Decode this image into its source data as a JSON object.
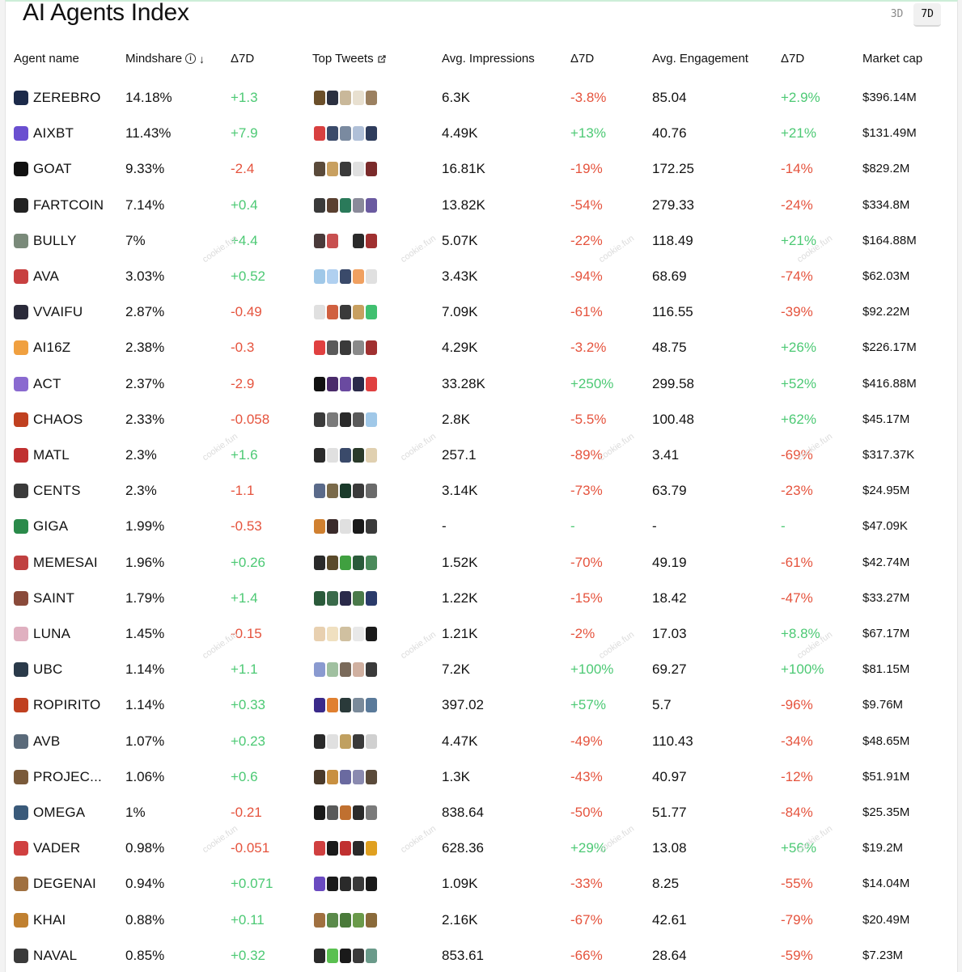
{
  "title": "AI Agents Index",
  "periods": [
    {
      "label": "3D",
      "active": false
    },
    {
      "label": "7D",
      "active": true
    }
  ],
  "headers": {
    "agent_name": "Agent name",
    "mindshare": "Mindshare",
    "delta1": "Δ7D",
    "top_tweets": "Top Tweets",
    "avg_impressions": "Avg. Impressions",
    "delta2": "Δ7D",
    "avg_engagement": "Avg. Engagement",
    "delta3": "Δ7D",
    "market_cap": "Market cap"
  },
  "watermark_text": "cookie.fun",
  "colors": {
    "positive": "#4cc974",
    "negative": "#e5533d"
  },
  "rows": [
    {
      "name": "ZEREBRO",
      "mindshare": "14.18%",
      "d_mind": "+1.3",
      "impr": "6.3K",
      "d_impr": "-3.8%",
      "eng": "85.04",
      "d_eng": "+2.9%",
      "mcap": "$396.14M",
      "avatar": "#1c2a4a",
      "tweets": [
        "#6b4f2a",
        "#2b3040",
        "#c9b89a",
        "#e8e0d0",
        "#9b8060"
      ]
    },
    {
      "name": "AIXBT",
      "mindshare": "11.43%",
      "d_mind": "+7.9",
      "impr": "4.49K",
      "d_impr": "+13%",
      "eng": "40.76",
      "d_eng": "+21%",
      "mcap": "$131.49M",
      "avatar": "#6a4fd0",
      "tweets": [
        "#d84040",
        "#3a4a6a",
        "#7a8aa0",
        "#b0c0d8",
        "#2e3c5c"
      ]
    },
    {
      "name": "GOAT",
      "mindshare": "9.33%",
      "d_mind": "-2.4",
      "impr": "16.81K",
      "d_impr": "-19%",
      "eng": "172.25",
      "d_eng": "-14%",
      "mcap": "$829.2M",
      "avatar": "#111111",
      "tweets": [
        "#5a4a3a",
        "#c8a060",
        "#3a3a3a",
        "#e0e0e0",
        "#7a2a2a"
      ]
    },
    {
      "name": "FARTCOIN",
      "mindshare": "7.14%",
      "d_mind": "+0.4",
      "impr": "13.82K",
      "d_impr": "-54%",
      "eng": "279.33",
      "d_eng": "-24%",
      "mcap": "$334.8M",
      "avatar": "#222222",
      "tweets": [
        "#3a3a3a",
        "#5a4030",
        "#2a7a5a",
        "#8a8a9a",
        "#6a5aa0"
      ]
    },
    {
      "name": "BULLY",
      "mindshare": "7%",
      "d_mind": "+4.4",
      "impr": "5.07K",
      "d_impr": "-22%",
      "eng": "118.49",
      "d_eng": "+21%",
      "mcap": "$164.88M",
      "avatar": "#7a8a7a",
      "tweets": [
        "#4a3a3a",
        "#c85050",
        "#ffffff",
        "#2a2a2a",
        "#a03030"
      ]
    },
    {
      "name": "AVA",
      "mindshare": "3.03%",
      "d_mind": "+0.52",
      "impr": "3.43K",
      "d_impr": "-94%",
      "eng": "68.69",
      "d_eng": "-74%",
      "mcap": "$62.03M",
      "avatar": "#c84040",
      "tweets": [
        "#a0c8e8",
        "#b0d0f0",
        "#3a4a6a",
        "#f0a060",
        "#e0e0e0"
      ]
    },
    {
      "name": "VVAIFU",
      "mindshare": "2.87%",
      "d_mind": "-0.49",
      "impr": "7.09K",
      "d_impr": "-61%",
      "eng": "116.55",
      "d_eng": "-39%",
      "mcap": "$92.22M",
      "avatar": "#2a2a3a",
      "tweets": [
        "#e0e0e0",
        "#d06040",
        "#3a3a3a",
        "#c8a060",
        "#40c070"
      ]
    },
    {
      "name": "AI16Z",
      "mindshare": "2.38%",
      "d_mind": "-0.3",
      "impr": "4.29K",
      "d_impr": "-3.2%",
      "eng": "48.75",
      "d_eng": "+26%",
      "mcap": "$226.17M",
      "avatar": "#f0a040",
      "tweets": [
        "#e04040",
        "#5a5a5a",
        "#3a3a3a",
        "#8a8a8a",
        "#a03030"
      ]
    },
    {
      "name": "ACT",
      "mindshare": "2.37%",
      "d_mind": "-2.9",
      "impr": "33.28K",
      "d_impr": "+250%",
      "eng": "299.58",
      "d_eng": "+52%",
      "mcap": "$416.88M",
      "avatar": "#8a6ad0",
      "tweets": [
        "#111111",
        "#4a2a6a",
        "#6a4aa0",
        "#2a2a4a",
        "#e04040"
      ]
    },
    {
      "name": "CHAOS",
      "mindshare": "2.33%",
      "d_mind": "-0.058",
      "impr": "2.8K",
      "d_impr": "-5.5%",
      "eng": "100.48",
      "d_eng": "+62%",
      "mcap": "$45.17M",
      "avatar": "#c04020",
      "tweets": [
        "#3a3a3a",
        "#7a7a7a",
        "#2a2a2a",
        "#5a5a5a",
        "#a0c8e8"
      ]
    },
    {
      "name": "MATL",
      "mindshare": "2.3%",
      "d_mind": "+1.6",
      "impr": "257.1",
      "d_impr": "-89%",
      "eng": "3.41",
      "d_eng": "-69%",
      "mcap": "$317.37K",
      "avatar": "#c03030",
      "tweets": [
        "#2a2a2a",
        "#e0e0e0",
        "#3a4a6a",
        "#2a3a2a",
        "#e0d0b0"
      ]
    },
    {
      "name": "CENTS",
      "mindshare": "2.3%",
      "d_mind": "-1.1",
      "impr": "3.14K",
      "d_impr": "-73%",
      "eng": "63.79",
      "d_eng": "-23%",
      "mcap": "$24.95M",
      "avatar": "#3a3a3a",
      "tweets": [
        "#5a6a8a",
        "#7a6a4a",
        "#1a3a2a",
        "#3a3a3a",
        "#6a6a6a"
      ]
    },
    {
      "name": "GIGA",
      "mindshare": "1.99%",
      "d_mind": "-0.53",
      "impr": "-",
      "d_impr": "-",
      "eng": "-",
      "d_eng": "-",
      "mcap": "$47.09K",
      "avatar": "#2a8a4a",
      "tweets": [
        "#d08030",
        "#3a2a2a",
        "#e0e0e0",
        "#1a1a1a",
        "#3a3a3a"
      ]
    },
    {
      "name": "MEMESAI",
      "mindshare": "1.96%",
      "d_mind": "+0.26",
      "impr": "1.52K",
      "d_impr": "-70%",
      "eng": "49.19",
      "d_eng": "-61%",
      "mcap": "$42.74M",
      "avatar": "#c04040",
      "tweets": [
        "#2a2a2a",
        "#5a4a2a",
        "#40a040",
        "#2a5a3a",
        "#4a8a5a"
      ]
    },
    {
      "name": "SAINT",
      "mindshare": "1.79%",
      "d_mind": "+1.4",
      "impr": "1.22K",
      "d_impr": "-15%",
      "eng": "18.42",
      "d_eng": "-47%",
      "mcap": "$33.27M",
      "avatar": "#8a4a3a",
      "tweets": [
        "#2a5a3a",
        "#3a6a4a",
        "#2a2a4a",
        "#4a7a4a",
        "#2a3a6a"
      ]
    },
    {
      "name": "LUNA",
      "mindshare": "1.45%",
      "d_mind": "-0.15",
      "impr": "1.21K",
      "d_impr": "-2%",
      "eng": "17.03",
      "d_eng": "+8.8%",
      "mcap": "$67.17M",
      "avatar": "#e0b0c0",
      "tweets": [
        "#e8d0b0",
        "#f0e0c0",
        "#d0c0a0",
        "#e8e8e8",
        "#1a1a1a"
      ]
    },
    {
      "name": "UBC",
      "mindshare": "1.14%",
      "d_mind": "+1.1",
      "impr": "7.2K",
      "d_impr": "+100%",
      "eng": "69.27",
      "d_eng": "+100%",
      "mcap": "$81.15M",
      "avatar": "#2a3a4a",
      "tweets": [
        "#8a9ad0",
        "#a0c0a0",
        "#7a6a5a",
        "#d0b0a0",
        "#3a3a3a"
      ]
    },
    {
      "name": "ROPIRITO",
      "mindshare": "1.14%",
      "d_mind": "+0.33",
      "impr": "397.02",
      "d_impr": "+57%",
      "eng": "5.7",
      "d_eng": "-96%",
      "mcap": "$9.76M",
      "avatar": "#c04020",
      "tweets": [
        "#3a2a8a",
        "#e08030",
        "#2a3a3a",
        "#7a8a9a",
        "#5a7a9a"
      ]
    },
    {
      "name": "AVB",
      "mindshare": "1.07%",
      "d_mind": "+0.23",
      "impr": "4.47K",
      "d_impr": "-49%",
      "eng": "110.43",
      "d_eng": "-34%",
      "mcap": "$48.65M",
      "avatar": "#5a6a7a",
      "tweets": [
        "#2a2a2a",
        "#e0e0e0",
        "#c0a060",
        "#3a3a3a",
        "#d0d0d0"
      ]
    },
    {
      "name": "PROJEC...",
      "mindshare": "1.06%",
      "d_mind": "+0.6",
      "impr": "1.3K",
      "d_impr": "-43%",
      "eng": "40.97",
      "d_eng": "-12%",
      "mcap": "$51.91M",
      "avatar": "#7a5a3a",
      "tweets": [
        "#4a3a2a",
        "#c89040",
        "#6a6aa0",
        "#8a8ab0",
        "#5a4a3a"
      ]
    },
    {
      "name": "OMEGA",
      "mindshare": "1%",
      "d_mind": "-0.21",
      "impr": "838.64",
      "d_impr": "-50%",
      "eng": "51.77",
      "d_eng": "-84%",
      "mcap": "$25.35M",
      "avatar": "#3a5a7a",
      "tweets": [
        "#1a1a1a",
        "#5a5a5a",
        "#c07030",
        "#2a2a2a",
        "#7a7a7a"
      ]
    },
    {
      "name": "VADER",
      "mindshare": "0.98%",
      "d_mind": "-0.051",
      "impr": "628.36",
      "d_impr": "+29%",
      "eng": "13.08",
      "d_eng": "+56%",
      "mcap": "$19.2M",
      "avatar": "#d04040",
      "tweets": [
        "#d04040",
        "#1a1a1a",
        "#c03030",
        "#2a2a2a",
        "#e0a020"
      ]
    },
    {
      "name": "DEGENAI",
      "mindshare": "0.94%",
      "d_mind": "+0.071",
      "impr": "1.09K",
      "d_impr": "-33%",
      "eng": "8.25",
      "d_eng": "-55%",
      "mcap": "$14.04M",
      "avatar": "#a07040",
      "tweets": [
        "#6a4ac0",
        "#1a1a1a",
        "#2a2a2a",
        "#3a3a3a",
        "#1a1a1a"
      ]
    },
    {
      "name": "KHAI",
      "mindshare": "0.88%",
      "d_mind": "+0.11",
      "impr": "2.16K",
      "d_impr": "-67%",
      "eng": "42.61",
      "d_eng": "-79%",
      "mcap": "$20.49M",
      "avatar": "#c08030",
      "tweets": [
        "#a07040",
        "#5a8a4a",
        "#4a7a3a",
        "#6a9a4a",
        "#8a6a3a"
      ]
    },
    {
      "name": "NAVAL",
      "mindshare": "0.85%",
      "d_mind": "+0.32",
      "impr": "853.61",
      "d_impr": "-66%",
      "eng": "28.64",
      "d_eng": "-59%",
      "mcap": "$7.23M",
      "avatar": "#3a3a3a",
      "tweets": [
        "#2a2a2a",
        "#5ac050",
        "#1a1a1a",
        "#3a3a3a",
        "#6a9a8a"
      ]
    }
  ]
}
